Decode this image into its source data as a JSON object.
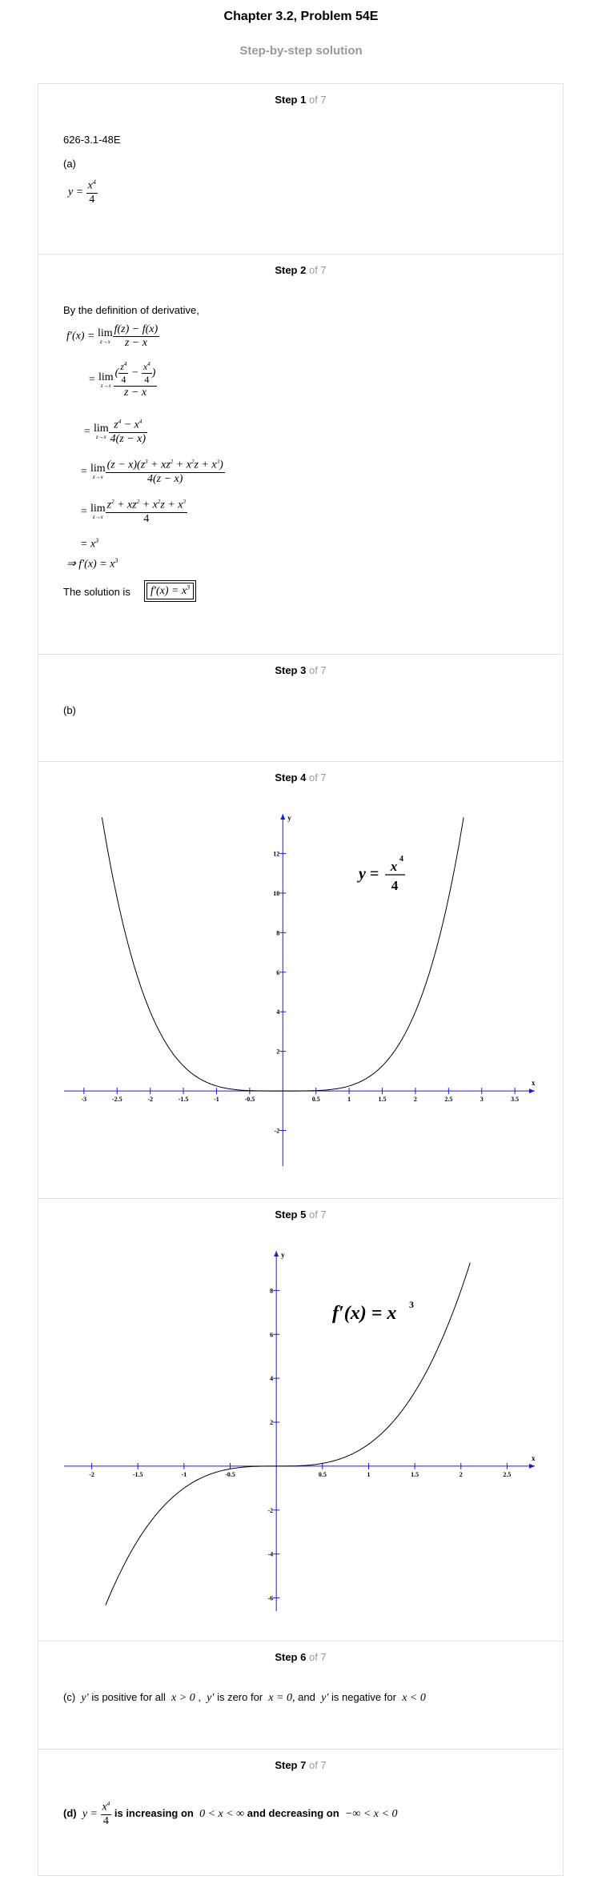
{
  "header": {
    "title": "Chapter 3.2, Problem 54E",
    "subtitle": "Step-by-step solution"
  },
  "steps": [
    {
      "label": "Step 1",
      "of": "of 7"
    },
    {
      "label": "Step 2",
      "of": "of 7"
    },
    {
      "label": "Step 3",
      "of": "of 7"
    },
    {
      "label": "Step 4",
      "of": "of 7"
    },
    {
      "label": "Step 5",
      "of": "of 7"
    },
    {
      "label": "Step 6",
      "of": "of 7"
    },
    {
      "label": "Step 7",
      "of": "of 7"
    }
  ],
  "step1": {
    "ref": "626-3.1-48E",
    "part": "(a)"
  },
  "step2": {
    "intro": "By the definition of derivative,",
    "solution_label": "The solution is"
  },
  "step3": {
    "part": "(b)"
  },
  "step6": {
    "t1": "(c)",
    "t2": "is positive for all",
    "t3": "is zero for",
    "t4": "and",
    "t5": "is negative for"
  },
  "step7": {
    "part": "(d)",
    "t1": "is increasing on",
    "t2": "and decreasing on"
  },
  "chart_data": [
    {
      "type": "line",
      "function": "y = x^4/4",
      "title": "y = x^4 / 4",
      "xlabel": "x",
      "ylabel": "y",
      "xlim": [
        -3.3,
        3.8
      ],
      "ylim": [
        -3.8,
        14.0
      ],
      "x_ticks": [
        -3,
        -2.5,
        -2,
        -1.5,
        -1,
        -0.5,
        0.5,
        1,
        1.5,
        2,
        2.5,
        3,
        3.5
      ],
      "x_tick_labels": [
        "-3",
        "-2.5",
        "-2",
        "-1.5",
        "-1",
        "-0.5",
        "0.5",
        "1",
        "1.5",
        "2",
        "2.5",
        "3",
        "3.5"
      ],
      "y_ticks": [
        -2,
        2,
        4,
        6,
        8,
        10,
        12
      ],
      "y_tick_labels": [
        "-2",
        "2",
        "4",
        "6",
        "8",
        "10",
        "12"
      ],
      "series": [
        {
          "x": [
            -2.75,
            -2.5,
            -2.25,
            -2,
            -1.75,
            -1.5,
            -1.25,
            -1,
            -0.75,
            -0.5,
            -0.25,
            0,
            0.25,
            0.5,
            0.75,
            1,
            1.25,
            1.5,
            1.75,
            2,
            2.25,
            2.5,
            2.75
          ],
          "y": [
            14.3,
            9.77,
            6.41,
            4.0,
            2.35,
            1.27,
            0.61,
            0.25,
            0.08,
            0.016,
            0.001,
            0,
            0.001,
            0.016,
            0.08,
            0.25,
            0.61,
            1.27,
            2.35,
            4.0,
            6.41,
            9.77,
            14.3
          ]
        }
      ]
    },
    {
      "type": "line",
      "function": "f'(x) = x^3",
      "title": "f'(x) = x^3",
      "xlabel": "x",
      "ylabel": "y",
      "xlim": [
        -2.3,
        2.8
      ],
      "ylim": [
        -6.6,
        9.8
      ],
      "x_ticks": [
        -2,
        -1.5,
        -1,
        -0.5,
        0.5,
        1,
        1.5,
        2,
        2.5
      ],
      "x_tick_labels": [
        "-2",
        "-1.5",
        "-1",
        "-0.5",
        "0.5",
        "1",
        "1.5",
        "2",
        "2.5"
      ],
      "y_ticks": [
        -6,
        -4,
        -2,
        2,
        4,
        6,
        8
      ],
      "y_tick_labels": [
        "-6",
        "-4",
        "-2",
        "2",
        "4",
        "6",
        "8"
      ],
      "series": [
        {
          "x": [
            -1.85,
            -1.5,
            -1.25,
            -1,
            -0.75,
            -0.5,
            -0.25,
            0,
            0.25,
            0.5,
            0.75,
            1,
            1.25,
            1.5,
            1.75,
            2,
            2.1
          ],
          "y": [
            -6.33,
            -3.38,
            -1.95,
            -1.0,
            -0.42,
            -0.125,
            -0.016,
            0,
            0.016,
            0.125,
            0.42,
            1.0,
            1.95,
            3.38,
            5.36,
            8.0,
            9.26
          ]
        }
      ]
    }
  ]
}
